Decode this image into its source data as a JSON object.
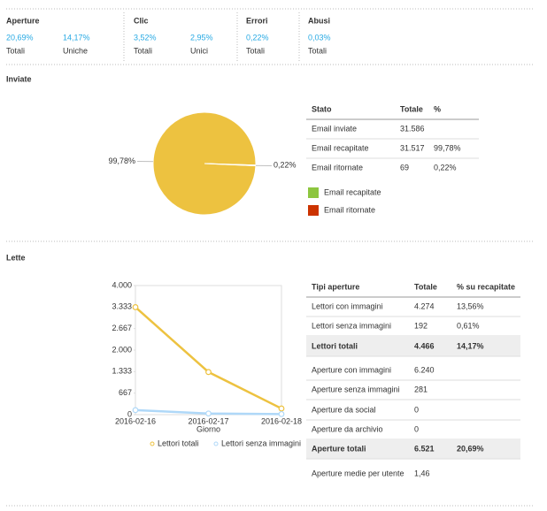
{
  "stats": [
    {
      "title": "Aperture",
      "items": [
        {
          "value": "20,69%",
          "label": "Totali"
        },
        {
          "value": "14,17%",
          "label": "Uniche"
        }
      ]
    },
    {
      "title": "Clic",
      "items": [
        {
          "value": "3,52%",
          "label": "Totali"
        },
        {
          "value": "2,95%",
          "label": "Unici"
        }
      ]
    },
    {
      "title": "Errori",
      "items": [
        {
          "value": "0,22%",
          "label": "Totali"
        }
      ]
    },
    {
      "title": "Abusi",
      "items": [
        {
          "value": "0,03%",
          "label": "Totali"
        }
      ]
    }
  ],
  "inviate": {
    "title": "Inviate",
    "table": {
      "headers": [
        "Stato",
        "Totale",
        "%"
      ],
      "rows": [
        {
          "cells": [
            "Email inviate",
            "31.586"
          ]
        },
        {
          "cells": [
            "Email recapitate",
            "31.517",
            "99,78%"
          ]
        },
        {
          "cells": [
            "Email ritornate",
            "69",
            "0,22%"
          ]
        }
      ]
    },
    "legend": [
      {
        "label": "Email recapitate",
        "color": "#8dc63f"
      },
      {
        "label": "Email ritornate",
        "color": "#cc3300"
      }
    ]
  },
  "lette": {
    "title": "Lette",
    "table": {
      "headers": [
        "Tipi aperture",
        "Totale",
        "% su recapitate"
      ],
      "rows": [
        {
          "cells": [
            "Lettori con immagini",
            "4.274",
            "13,56%"
          ]
        },
        {
          "cells": [
            "Lettori senza immagini",
            "192",
            "0,61%"
          ]
        },
        {
          "cells": [
            "Lettori totali",
            "4.466",
            "14,17%"
          ],
          "highlight": true
        },
        {
          "cells": [
            "Aperture con immagini",
            "6.240"
          ]
        },
        {
          "cells": [
            "Aperture senza immagini",
            "281"
          ]
        },
        {
          "cells": [
            "Aperture da social",
            "0"
          ]
        },
        {
          "cells": [
            "Aperture da archivio",
            "0"
          ]
        },
        {
          "cells": [
            "Aperture totali",
            "6.521",
            "20,69%"
          ],
          "highlight": true
        },
        {
          "cells": [
            "Aperture medie per utente",
            "1,46"
          ]
        }
      ]
    }
  },
  "chart_data": [
    {
      "type": "pie",
      "values": [
        99.78,
        0.22
      ],
      "value_labels": [
        "99,78%",
        "0,22%"
      ],
      "colors": [
        "#edc240",
        "#edc240"
      ]
    },
    {
      "type": "line",
      "xlabel": "Giorno",
      "categories": [
        "2016-02-16",
        "2016-02-17",
        "2016-02-18"
      ],
      "series": [
        {
          "name": "Lettori totali",
          "color": "#edc240",
          "values": [
            3330,
            1320,
            190
          ]
        },
        {
          "name": "Lettori senza immagini",
          "color": "#afd8f8",
          "values": [
            140,
            35,
            17
          ]
        }
      ],
      "ylim": [
        0,
        4000
      ],
      "yticks": [
        {
          "value": 0,
          "label": "0"
        },
        {
          "value": 667,
          "label": "667"
        },
        {
          "value": 1333,
          "label": "1.333"
        },
        {
          "value": 2000,
          "label": "2.000"
        },
        {
          "value": 2667,
          "label": "2.667"
        },
        {
          "value": 3333,
          "label": "3.333"
        },
        {
          "value": 4000,
          "label": "4.000"
        }
      ],
      "grid": false
    }
  ]
}
